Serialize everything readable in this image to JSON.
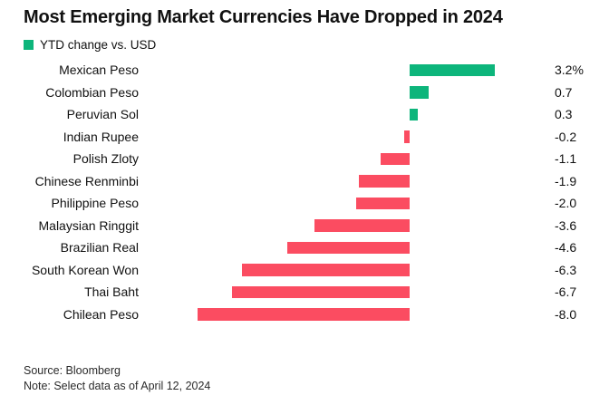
{
  "title": "Most Emerging Market Currencies Have Dropped in 2024",
  "legend": {
    "label": "YTD change vs. USD"
  },
  "colors": {
    "positive": "#0db57b",
    "negative": "#fb4c61",
    "text": "#111111"
  },
  "chart_data": {
    "type": "bar",
    "orientation": "horizontal",
    "title": "Most Emerging Market Currencies Have Dropped in 2024",
    "legend_entries": [
      "YTD change vs. USD"
    ],
    "xlabel": "",
    "ylabel": "",
    "xlim": [
      -8.5,
      3.5
    ],
    "unit": "% YTD change vs. USD",
    "categories": [
      "Mexican Peso",
      "Colombian Peso",
      "Peruvian Sol",
      "Indian Rupee",
      "Polish Zloty",
      "Chinese Renminbi",
      "Philippine Peso",
      "Malaysian Ringgit",
      "Brazilian Real",
      "South Korean Won",
      "Thai Baht",
      "Chilean Peso"
    ],
    "values": [
      3.2,
      0.7,
      0.3,
      -0.2,
      -1.1,
      -1.9,
      -2.0,
      -3.6,
      -4.6,
      -6.3,
      -6.7,
      -8.0
    ],
    "value_labels": [
      "3.2%",
      "0.7",
      "0.3",
      "-0.2",
      "-1.1",
      "-1.9",
      "-2.0",
      "-3.6",
      "-4.6",
      "-6.3",
      "-6.7",
      "-8.0"
    ]
  },
  "footer": {
    "source": "Source: Bloomberg",
    "note": "Note: Select data as of April 12, 2024"
  }
}
